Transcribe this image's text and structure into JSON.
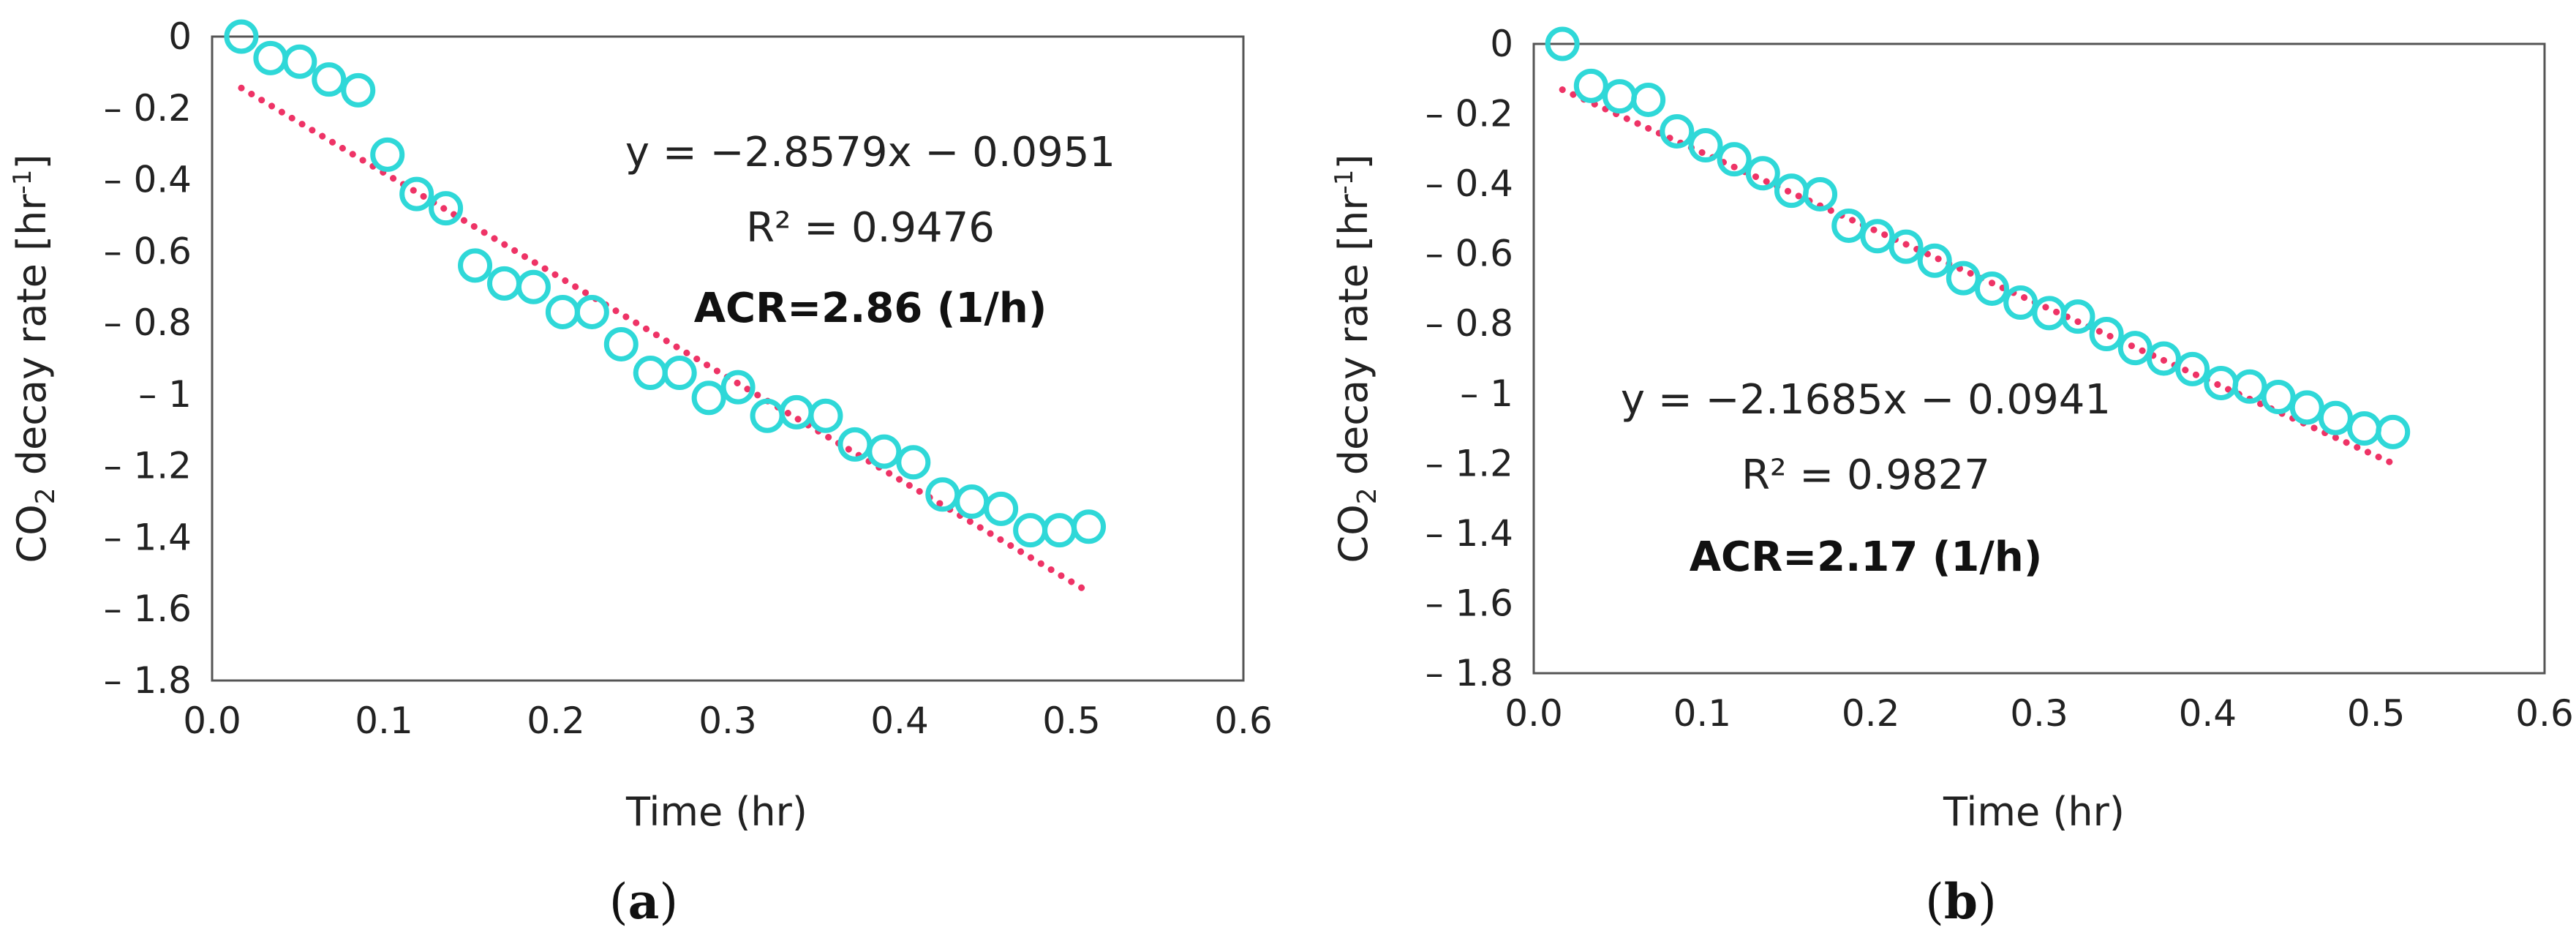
{
  "chart_data": [
    {
      "type": "scatter",
      "panel_label": "a",
      "xlabel": "Time (hr)",
      "ylabel": "CO",
      "ylabel_sub": "2",
      "ylabel_rest": " decay rate [hr",
      "ylabel_sup": "-1",
      "ylabel_end": "]",
      "xlim": [
        0.0,
        0.6
      ],
      "ylim": [
        -1.8,
        0
      ],
      "xticks": [
        "0.0",
        "0.1",
        "0.2",
        "0.3",
        "0.4",
        "0.5",
        "0.6"
      ],
      "yticks": [
        "0",
        "– 0.2",
        "– 0.4",
        "– 0.6",
        "– 0.8",
        "– 1",
        "– 1.2",
        "– 1.4",
        "– 1.6",
        "– 1.8"
      ],
      "x": [
        0.017,
        0.034,
        0.051,
        0.068,
        0.085,
        0.102,
        0.119,
        0.136,
        0.153,
        0.17,
        0.187,
        0.204,
        0.221,
        0.238,
        0.255,
        0.272,
        0.289,
        0.306,
        0.323,
        0.34,
        0.357,
        0.374,
        0.391,
        0.408,
        0.425,
        0.442,
        0.459,
        0.476,
        0.493,
        0.51
      ],
      "y": [
        0.0,
        -0.06,
        -0.07,
        -0.12,
        -0.15,
        -0.33,
        -0.44,
        -0.48,
        -0.64,
        -0.69,
        -0.7,
        -0.77,
        -0.77,
        -0.86,
        -0.94,
        -0.94,
        -1.01,
        -0.98,
        -1.06,
        -1.05,
        -1.06,
        -1.14,
        -1.16,
        -1.19,
        -1.28,
        -1.3,
        -1.32,
        -1.38,
        -1.38,
        -1.37
      ],
      "fit": {
        "slope": -2.8579,
        "intercept": -0.0951,
        "x_range": [
          0.017,
          0.51
        ]
      },
      "annotations": {
        "equation": "y = −2.8579x − 0.0951",
        "r2": "R² = 0.9476",
        "acr": "ACR=2.86 (1/h)"
      }
    },
    {
      "type": "scatter",
      "panel_label": "b",
      "xlabel": "Time (hr)",
      "ylabel": "CO",
      "ylabel_sub": "2",
      "ylabel_rest": " decay rate [hr",
      "ylabel_sup": "-1",
      "ylabel_end": "]",
      "xlim": [
        0.0,
        0.6
      ],
      "ylim": [
        -1.8,
        0
      ],
      "xticks": [
        "0.0",
        "0.1",
        "0.2",
        "0.3",
        "0.4",
        "0.5",
        "0.6"
      ],
      "yticks": [
        "0",
        "– 0.2",
        "– 0.4",
        "– 0.6",
        "– 0.8",
        "– 1",
        "– 1.2",
        "– 1.4",
        "– 1.6",
        "– 1.8"
      ],
      "x": [
        0.017,
        0.034,
        0.051,
        0.068,
        0.085,
        0.102,
        0.119,
        0.136,
        0.153,
        0.17,
        0.187,
        0.204,
        0.221,
        0.238,
        0.255,
        0.272,
        0.289,
        0.306,
        0.323,
        0.34,
        0.357,
        0.374,
        0.391,
        0.408,
        0.425,
        0.442,
        0.459,
        0.476,
        0.493,
        0.51
      ],
      "y": [
        0.0,
        -0.12,
        -0.15,
        -0.16,
        -0.25,
        -0.29,
        -0.33,
        -0.37,
        -0.42,
        -0.43,
        -0.52,
        -0.55,
        -0.58,
        -0.62,
        -0.67,
        -0.7,
        -0.74,
        -0.77,
        -0.78,
        -0.83,
        -0.87,
        -0.9,
        -0.93,
        -0.97,
        -0.98,
        -1.01,
        -1.04,
        -1.07,
        -1.1,
        -1.11
      ],
      "fit": {
        "slope": -2.1685,
        "intercept": -0.0941,
        "x_range": [
          0.017,
          0.51
        ]
      },
      "annotations": {
        "equation": "y = −2.1685x − 0.0941",
        "r2": "R² = 0.9827",
        "acr": "ACR=2.17 (1/h)"
      }
    }
  ],
  "colors": {
    "marker": "#2fd8d8",
    "fit": "#ee3366",
    "axis": "#555555"
  }
}
